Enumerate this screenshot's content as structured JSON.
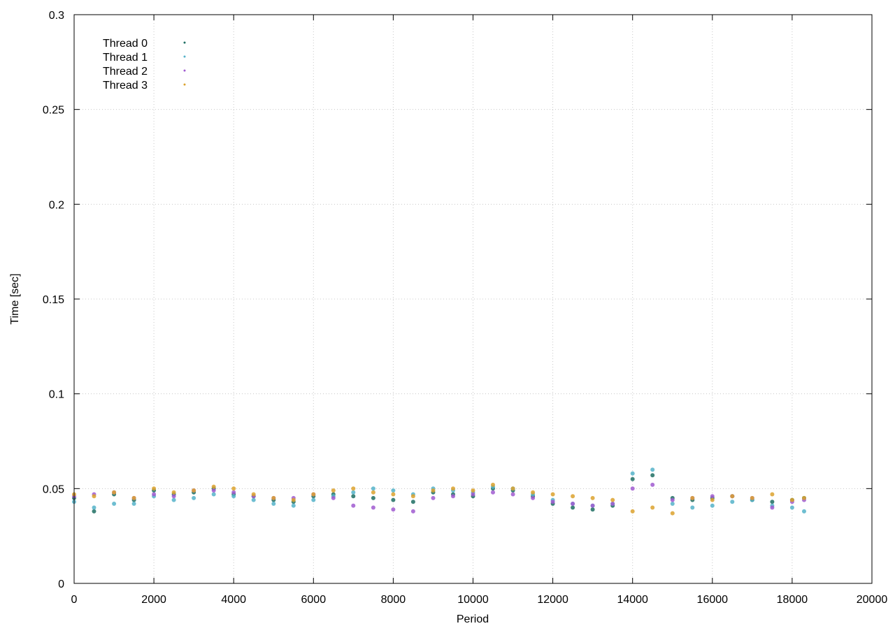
{
  "chart_data": {
    "type": "scatter",
    "title": "",
    "xlabel": "Period",
    "ylabel": "Time [sec]",
    "xlim": [
      0,
      20000
    ],
    "ylim": [
      0,
      0.3
    ],
    "xticks": [
      0,
      2000,
      4000,
      6000,
      8000,
      10000,
      12000,
      14000,
      16000,
      18000,
      20000
    ],
    "yticks": [
      0,
      0.05,
      0.1,
      0.15,
      0.2,
      0.25,
      0.3
    ],
    "xtick_labels": [
      "0",
      "2000",
      "4000",
      "6000",
      "8000",
      "10000",
      "12000",
      "14000",
      "16000",
      "18000",
      "20000"
    ],
    "ytick_labels": [
      "0",
      "0.05",
      "0.1",
      "0.15",
      "0.2",
      "0.25",
      "0.3"
    ],
    "grid": true,
    "legend_position": "top-left",
    "series": [
      {
        "name": "Thread 0",
        "color": "#1f6f63",
        "x": [
          0,
          500,
          1000,
          1500,
          2000,
          2500,
          3000,
          3500,
          4000,
          4500,
          5000,
          5500,
          6000,
          6500,
          7000,
          7500,
          8000,
          8500,
          9000,
          9500,
          10000,
          10500,
          11000,
          11500,
          12000,
          12500,
          13000,
          13500,
          14000,
          14500,
          15000,
          15500,
          16000,
          16500,
          17000,
          17500,
          18000,
          18300
        ],
        "y": [
          0.045,
          0.038,
          0.047,
          0.044,
          0.049,
          0.047,
          0.048,
          0.05,
          0.047,
          0.046,
          0.044,
          0.043,
          0.046,
          0.047,
          0.046,
          0.045,
          0.044,
          0.043,
          0.048,
          0.047,
          0.046,
          0.05,
          0.049,
          0.046,
          0.042,
          0.04,
          0.039,
          0.041,
          0.055,
          0.057,
          0.045,
          0.044,
          0.045,
          0.046,
          0.044,
          0.043,
          0.044,
          0.045
        ]
      },
      {
        "name": "Thread 1",
        "color": "#55b3c9",
        "x": [
          0,
          500,
          1000,
          1500,
          2000,
          2500,
          3000,
          3500,
          4000,
          4500,
          5000,
          5500,
          6000,
          6500,
          7000,
          7500,
          8000,
          8500,
          9000,
          9500,
          10000,
          10500,
          11000,
          11500,
          12000,
          12500,
          13000,
          13500,
          14000,
          14500,
          15000,
          15500,
          16000,
          16500,
          17000,
          17500,
          18000,
          18300
        ],
        "y": [
          0.043,
          0.04,
          0.042,
          0.042,
          0.046,
          0.044,
          0.045,
          0.047,
          0.046,
          0.044,
          0.042,
          0.041,
          0.044,
          0.046,
          0.048,
          0.05,
          0.049,
          0.047,
          0.05,
          0.049,
          0.048,
          0.051,
          0.05,
          0.047,
          0.044,
          0.042,
          0.041,
          0.042,
          0.058,
          0.06,
          0.042,
          0.04,
          0.041,
          0.043,
          0.044,
          0.041,
          0.04,
          0.038
        ]
      },
      {
        "name": "Thread 2",
        "color": "#a05bd0",
        "x": [
          0,
          500,
          1000,
          1500,
          2000,
          2500,
          3000,
          3500,
          4000,
          4500,
          5000,
          5500,
          6000,
          6500,
          7000,
          7500,
          8000,
          8500,
          9000,
          9500,
          10000,
          10500,
          11000,
          11500,
          12000,
          12500,
          13000,
          13500,
          14000,
          14500,
          15000,
          15500,
          16000,
          16500,
          17000,
          17500,
          18000,
          18300
        ],
        "y": [
          0.046,
          0.047,
          0.048,
          0.045,
          0.047,
          0.046,
          0.049,
          0.049,
          0.048,
          0.046,
          0.045,
          0.045,
          0.047,
          0.045,
          0.041,
          0.04,
          0.039,
          0.038,
          0.045,
          0.046,
          0.047,
          0.048,
          0.047,
          0.045,
          0.043,
          0.042,
          0.041,
          0.042,
          0.05,
          0.052,
          0.044,
          0.045,
          0.046,
          0.046,
          0.045,
          0.04,
          0.043,
          0.044
        ]
      },
      {
        "name": "Thread 3",
        "color": "#dca22e",
        "x": [
          0,
          500,
          1000,
          1500,
          2000,
          2500,
          3000,
          3500,
          4000,
          4500,
          5000,
          5500,
          6000,
          6500,
          7000,
          7500,
          8000,
          8500,
          9000,
          9500,
          10000,
          10500,
          11000,
          11500,
          12000,
          12500,
          13000,
          13500,
          14000,
          14500,
          15000,
          15500,
          16000,
          16500,
          17000,
          17500,
          18000,
          18300
        ],
        "y": [
          0.047,
          0.046,
          0.048,
          0.045,
          0.05,
          0.048,
          0.049,
          0.051,
          0.05,
          0.047,
          0.045,
          0.044,
          0.047,
          0.049,
          0.05,
          0.048,
          0.047,
          0.046,
          0.049,
          0.05,
          0.049,
          0.052,
          0.05,
          0.048,
          0.047,
          0.046,
          0.045,
          0.044,
          0.038,
          0.04,
          0.037,
          0.045,
          0.044,
          0.046,
          0.045,
          0.047,
          0.044,
          0.045
        ]
      }
    ]
  }
}
